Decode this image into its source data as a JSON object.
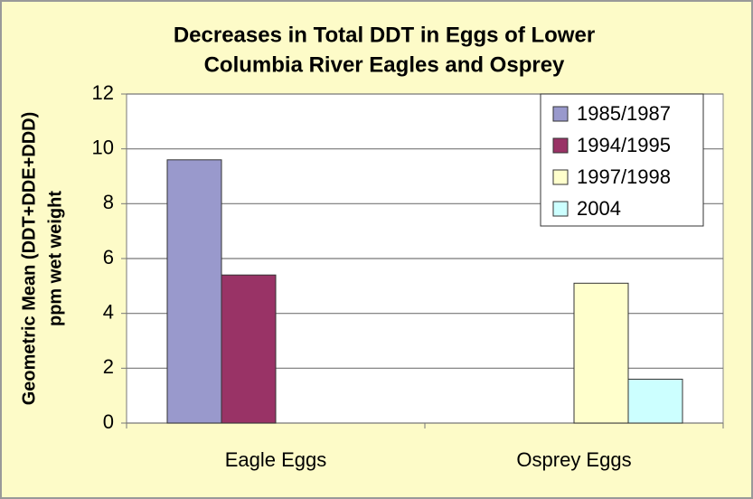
{
  "chart_data": {
    "type": "bar",
    "title": [
      "Decreases in Total DDT in Eggs of Lower",
      "Columbia River Eagles and Osprey"
    ],
    "ylabel": [
      "Geometric Mean (DDT+DDE+DDD)",
      "ppm wet weight"
    ],
    "categories": [
      "Eagle Eggs",
      "Osprey Eggs"
    ],
    "series": [
      {
        "name": "1985/1987",
        "color": "#9999cc",
        "values": [
          9.6,
          null
        ]
      },
      {
        "name": "1994/1995",
        "color": "#993366",
        "values": [
          5.4,
          null
        ]
      },
      {
        "name": "1997/1998",
        "color": "#ffffcc",
        "values": [
          null,
          5.1
        ]
      },
      {
        "name": "2004",
        "color": "#ccffff",
        "values": [
          null,
          1.6
        ]
      }
    ],
    "ylim": [
      0,
      12
    ],
    "yticks": [
      0,
      2,
      4,
      6,
      8,
      10,
      12
    ],
    "grid": true,
    "legend": "upper right"
  }
}
